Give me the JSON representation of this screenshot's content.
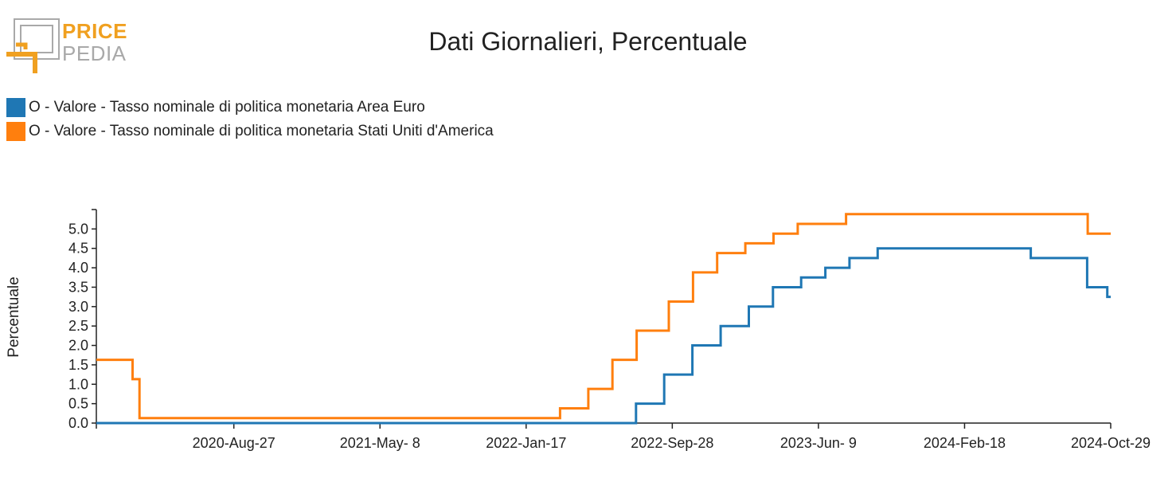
{
  "logo": {
    "line1": "PRICE",
    "line2": "PEDIA",
    "accent": "#f0a020",
    "secondary": "#a9a9a9"
  },
  "chart_data": {
    "type": "line",
    "title": "Dati Giornalieri, Percentuale",
    "ylabel": "Percentuale",
    "xlabel": "",
    "ylim": [
      0,
      5.5
    ],
    "xlim": [
      "2020-01-01",
      "2024-10-29"
    ],
    "yticks": [
      0.0,
      0.5,
      1.0,
      1.5,
      2.0,
      2.5,
      3.0,
      3.5,
      4.0,
      4.5,
      5.0
    ],
    "ytick_labels": [
      "0.0",
      "0.5",
      "1.0",
      "1.5",
      "2.0",
      "2.5",
      "3.0",
      "3.5",
      "4.0",
      "4.5",
      "5.0"
    ],
    "xticks": [
      "2020-08-27",
      "2021-05-08",
      "2022-01-17",
      "2022-09-28",
      "2023-06-09",
      "2024-02-18",
      "2024-10-29"
    ],
    "xtick_labels": [
      "2020-Aug-27",
      "2021-May- 8",
      "2022-Jan-17",
      "2022-Sep-28",
      "2023-Jun- 9",
      "2024-Feb-18",
      "2024-Oct-29"
    ],
    "legend_position": "top-left",
    "series": [
      {
        "name": "O - Valore - Tasso nominale di politica monetaria Area Euro",
        "color": "#1f77b4",
        "step": true,
        "points": [
          [
            "2020-01-01",
            0.0
          ],
          [
            "2022-07-27",
            0.5
          ],
          [
            "2022-09-14",
            1.25
          ],
          [
            "2022-11-02",
            2.0
          ],
          [
            "2022-12-21",
            2.5
          ],
          [
            "2023-02-08",
            3.0
          ],
          [
            "2023-03-22",
            3.5
          ],
          [
            "2023-05-10",
            3.75
          ],
          [
            "2023-06-21",
            4.0
          ],
          [
            "2023-08-02",
            4.25
          ],
          [
            "2023-09-20",
            4.5
          ],
          [
            "2024-06-12",
            4.25
          ],
          [
            "2024-09-18",
            3.5
          ],
          [
            "2024-10-23",
            3.25
          ],
          [
            "2024-10-29",
            3.25
          ]
        ]
      },
      {
        "name": "O - Valore - Tasso nominale di politica monetaria Stati Uniti d'America",
        "color": "#ff7f0e",
        "step": true,
        "points": [
          [
            "2020-01-01",
            1.63
          ],
          [
            "2020-03-04",
            1.13
          ],
          [
            "2020-03-16",
            0.13
          ],
          [
            "2022-03-17",
            0.38
          ],
          [
            "2022-05-05",
            0.88
          ],
          [
            "2022-06-16",
            1.63
          ],
          [
            "2022-07-28",
            2.38
          ],
          [
            "2022-09-22",
            3.13
          ],
          [
            "2022-11-03",
            3.88
          ],
          [
            "2022-12-15",
            4.38
          ],
          [
            "2023-02-02",
            4.63
          ],
          [
            "2023-03-23",
            4.88
          ],
          [
            "2023-05-04",
            5.13
          ],
          [
            "2023-07-27",
            5.38
          ],
          [
            "2024-09-19",
            4.88
          ],
          [
            "2024-10-29",
            4.88
          ]
        ]
      }
    ]
  }
}
